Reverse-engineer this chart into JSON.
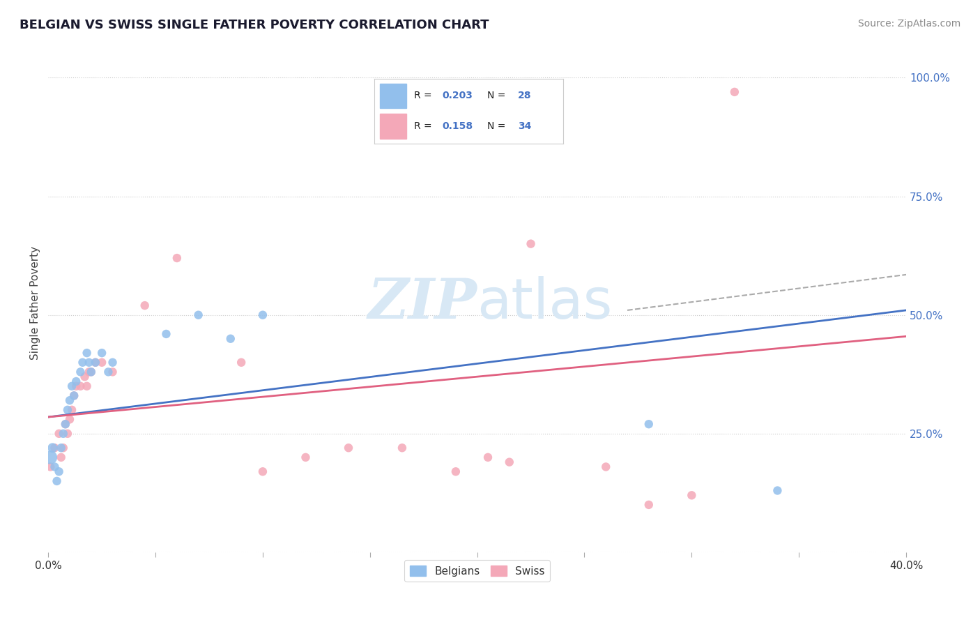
{
  "title": "BELGIAN VS SWISS SINGLE FATHER POVERTY CORRELATION CHART",
  "source": "Source: ZipAtlas.com",
  "ylabel": "Single Father Poverty",
  "xlim": [
    0.0,
    0.4
  ],
  "ylim": [
    0.0,
    1.05
  ],
  "yticks": [
    0.0,
    0.25,
    0.5,
    0.75,
    1.0
  ],
  "ytick_labels_right": [
    "",
    "25.0%",
    "50.0%",
    "75.0%",
    "100.0%"
  ],
  "xticks": [
    0.0,
    0.05,
    0.1,
    0.15,
    0.2,
    0.25,
    0.3,
    0.35,
    0.4
  ],
  "xtick_labels": [
    "0.0%",
    "",
    "",
    "",
    "",
    "",
    "",
    "",
    "40.0%"
  ],
  "belgians_R": 0.203,
  "belgians_N": 28,
  "swiss_R": 0.158,
  "swiss_N": 34,
  "belgian_color": "#92BFEC",
  "swiss_color": "#F4A8B8",
  "belgian_line_color": "#4472C4",
  "swiss_line_color": "#E06080",
  "dash_color": "#aaaaaa",
  "watermark_color": "#d8e8f5",
  "background_color": "#ffffff",
  "grid_color": "#cccccc",
  "label_color": "#4472C4",
  "title_color": "#1a1a2e",
  "source_color": "#888888",
  "belgians_x": [
    0.001,
    0.002,
    0.003,
    0.004,
    0.005,
    0.006,
    0.007,
    0.008,
    0.009,
    0.01,
    0.011,
    0.012,
    0.013,
    0.015,
    0.016,
    0.018,
    0.019,
    0.02,
    0.022,
    0.025,
    0.028,
    0.03,
    0.055,
    0.07,
    0.085,
    0.1,
    0.28,
    0.34
  ],
  "belgians_y": [
    0.2,
    0.22,
    0.18,
    0.15,
    0.17,
    0.22,
    0.25,
    0.27,
    0.3,
    0.32,
    0.35,
    0.33,
    0.36,
    0.38,
    0.4,
    0.42,
    0.4,
    0.38,
    0.4,
    0.42,
    0.38,
    0.4,
    0.46,
    0.5,
    0.45,
    0.5,
    0.27,
    0.13
  ],
  "belgians_sizes": [
    200,
    100,
    80,
    80,
    80,
    80,
    80,
    80,
    80,
    80,
    80,
    80,
    80,
    80,
    80,
    80,
    80,
    80,
    80,
    80,
    80,
    80,
    80,
    80,
    80,
    80,
    80,
    80
  ],
  "swiss_x": [
    0.001,
    0.003,
    0.005,
    0.006,
    0.007,
    0.008,
    0.009,
    0.01,
    0.011,
    0.012,
    0.013,
    0.015,
    0.017,
    0.018,
    0.019,
    0.02,
    0.022,
    0.025,
    0.03,
    0.045,
    0.06,
    0.09,
    0.1,
    0.12,
    0.14,
    0.165,
    0.19,
    0.205,
    0.215,
    0.225,
    0.26,
    0.28,
    0.3,
    0.32
  ],
  "swiss_y": [
    0.18,
    0.22,
    0.25,
    0.2,
    0.22,
    0.27,
    0.25,
    0.28,
    0.3,
    0.33,
    0.35,
    0.35,
    0.37,
    0.35,
    0.38,
    0.38,
    0.4,
    0.4,
    0.38,
    0.52,
    0.62,
    0.4,
    0.17,
    0.2,
    0.22,
    0.22,
    0.17,
    0.2,
    0.19,
    0.65,
    0.18,
    0.1,
    0.12,
    0.97
  ],
  "swiss_sizes": [
    80,
    80,
    80,
    80,
    80,
    80,
    80,
    80,
    80,
    80,
    80,
    80,
    80,
    80,
    80,
    80,
    80,
    80,
    80,
    80,
    80,
    80,
    80,
    80,
    80,
    80,
    80,
    80,
    80,
    80,
    80,
    80,
    80,
    80
  ],
  "belgian_line_x": [
    0.0,
    0.4
  ],
  "belgian_line_y": [
    0.285,
    0.51
  ],
  "swiss_line_x": [
    0.0,
    0.4
  ],
  "swiss_line_y": [
    0.285,
    0.455
  ],
  "dash_line_x": [
    0.27,
    0.4
  ],
  "dash_line_y": [
    0.51,
    0.585
  ]
}
